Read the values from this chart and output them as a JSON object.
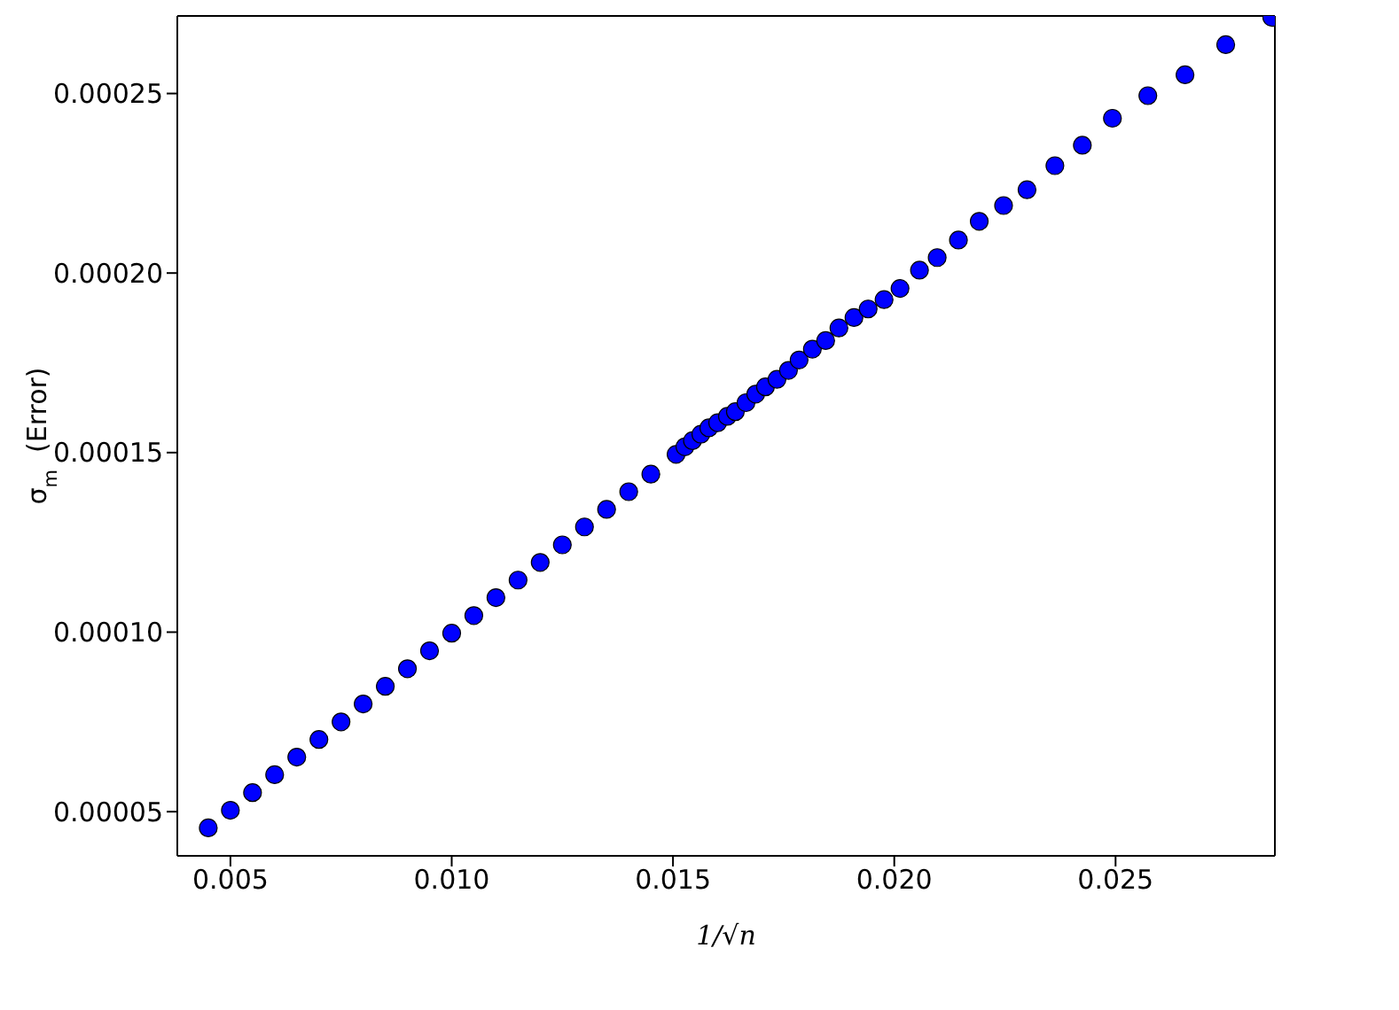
{
  "chart_data": {
    "type": "scatter",
    "xlabel": "1/√n",
    "ylabel": "σ$_{m}$  (Error)",
    "x": [
      0.0045,
      0.005,
      0.0055,
      0.006,
      0.0065,
      0.007,
      0.0075,
      0.008,
      0.0085,
      0.009,
      0.0095,
      0.01,
      0.0105,
      0.011,
      0.0115,
      0.012,
      0.0125,
      0.013,
      0.0135,
      0.014,
      0.0145,
      0.01507,
      0.01527,
      0.01544,
      0.01563,
      0.01581,
      0.01601,
      0.01623,
      0.01641,
      0.01665,
      0.01687,
      0.01709,
      0.01735,
      0.01761,
      0.01785,
      0.01815,
      0.01845,
      0.01875,
      0.01909,
      0.01941,
      0.01977,
      0.02013,
      0.02057,
      0.02097,
      0.02145,
      0.02192,
      0.02247,
      0.023,
      0.02363,
      0.02425,
      0.02493,
      0.02573,
      0.02657,
      0.02749,
      0.02853
    ],
    "series": [
      {
        "color": "#0000ff",
        "values": [
          4.55e-05,
          5.04e-05,
          5.53e-05,
          6.03e-05,
          6.52e-05,
          7.01e-05,
          7.5e-05,
          8e-05,
          8.49e-05,
          8.98e-05,
          9.48e-05,
          9.97e-05,
          0.0001046,
          0.0001096,
          0.0001145,
          0.0001194,
          0.0001243,
          0.0001293,
          0.0001342,
          0.0001391,
          0.000144,
          0.0001495,
          0.0001516,
          0.0001533,
          0.0001551,
          0.0001569,
          0.0001583,
          0.0001601,
          0.0001614,
          0.0001639,
          0.0001663,
          0.0001683,
          0.0001704,
          0.0001729,
          0.0001758,
          0.0001788,
          0.0001812,
          0.0001847,
          0.0001876,
          0.00019,
          0.0001926,
          0.0001957,
          0.0002008,
          0.0002043,
          0.0002092,
          0.0002144,
          0.0002188,
          0.0002232,
          0.0002299,
          0.0002356,
          0.0002431,
          0.0002494,
          0.0002552,
          0.0002636,
          0.0002712
        ]
      }
    ],
    "xlim": [
      0.0038,
      0.0286
    ],
    "xticks": [
      {
        "value": 0.005,
        "label": "0.005"
      },
      {
        "value": 0.01,
        "label": "0.010"
      },
      {
        "value": 0.015,
        "label": "0.015"
      },
      {
        "value": 0.02,
        "label": "0.020"
      },
      {
        "value": 0.025,
        "label": "0.025"
      }
    ],
    "ylim": [
      3.77e-05,
      0.0002716
    ],
    "yticks": [
      {
        "value": 5e-05,
        "label": "0.00005"
      },
      {
        "value": 0.0001,
        "label": "0.00010"
      },
      {
        "value": 0.00015,
        "label": "0.00015"
      },
      {
        "value": 0.0002,
        "label": "0.00020"
      },
      {
        "value": 0.00025,
        "label": "0.00025"
      }
    ],
    "marker": "circle"
  }
}
